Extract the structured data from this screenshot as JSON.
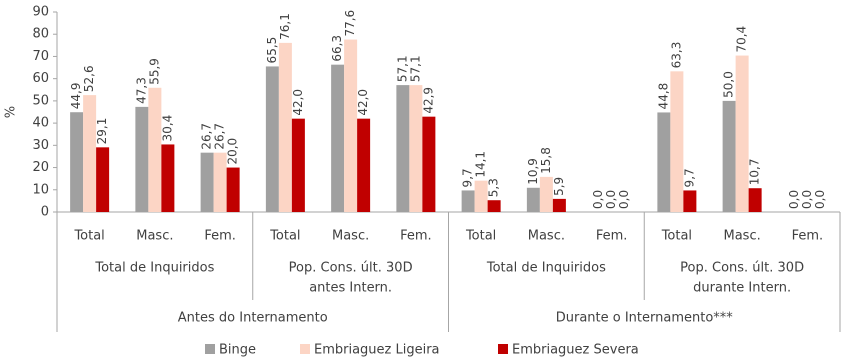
{
  "chart_data": {
    "type": "bar",
    "y_label": "%",
    "categories": [
      "Total",
      "Masc.",
      "Fem.",
      "Total",
      "Masc.",
      "Fem.",
      "Total",
      "Masc.",
      "Fem.",
      "Total",
      "Masc.",
      "Fem."
    ],
    "groups": [
      [
        "Total de Inquiridos"
      ],
      [
        "Pop. Cons. últ. 30D",
        "antes Intern."
      ],
      [
        "Total de Inquiridos"
      ],
      [
        "Pop. Cons. últ. 30D",
        "durante Intern."
      ]
    ],
    "super_groups": [
      "Antes do Internamento",
      "Durante o Internamento***"
    ],
    "series": [
      {
        "name": "Binge",
        "color": "#a0a0a0",
        "values": [
          44.9,
          47.3,
          26.7,
          65.5,
          66.3,
          57.1,
          9.7,
          10.9,
          0.0,
          44.8,
          50.0,
          0.0
        ],
        "value_labels": [
          "44,9",
          "47,3",
          "26,7",
          "65,5",
          "66,3",
          "57,1",
          "9,7",
          "10,9",
          "0,0",
          "44,8",
          "50,0",
          "0,0"
        ]
      },
      {
        "name": "Embriaguez Ligeira",
        "color": "#fcd5c5",
        "values": [
          52.6,
          55.9,
          26.7,
          76.1,
          77.6,
          57.1,
          14.1,
          15.8,
          0.0,
          63.3,
          70.4,
          0.0
        ],
        "value_labels": [
          "52,6",
          "55,9",
          "26,7",
          "76,1",
          "77,6",
          "57,1",
          "14,1",
          "15,8",
          "0,0",
          "63,3",
          "70,4",
          "0,0"
        ]
      },
      {
        "name": "Embriaguez Severa",
        "color": "#c00000",
        "values": [
          29.1,
          30.4,
          20.0,
          42.0,
          42.0,
          42.9,
          5.3,
          5.9,
          0.0,
          9.7,
          10.7,
          0.0
        ],
        "value_labels": [
          "29,1",
          "30,4",
          "20,0",
          "42,0",
          "42,0",
          "42,9",
          "5,3",
          "5,9",
          "0,0",
          "9,7",
          "10,7",
          "0,0"
        ]
      }
    ],
    "ylim": [
      0,
      90
    ],
    "yticks": [
      0,
      10,
      20,
      30,
      40,
      50,
      60,
      70,
      80,
      90
    ],
    "grid": false
  }
}
